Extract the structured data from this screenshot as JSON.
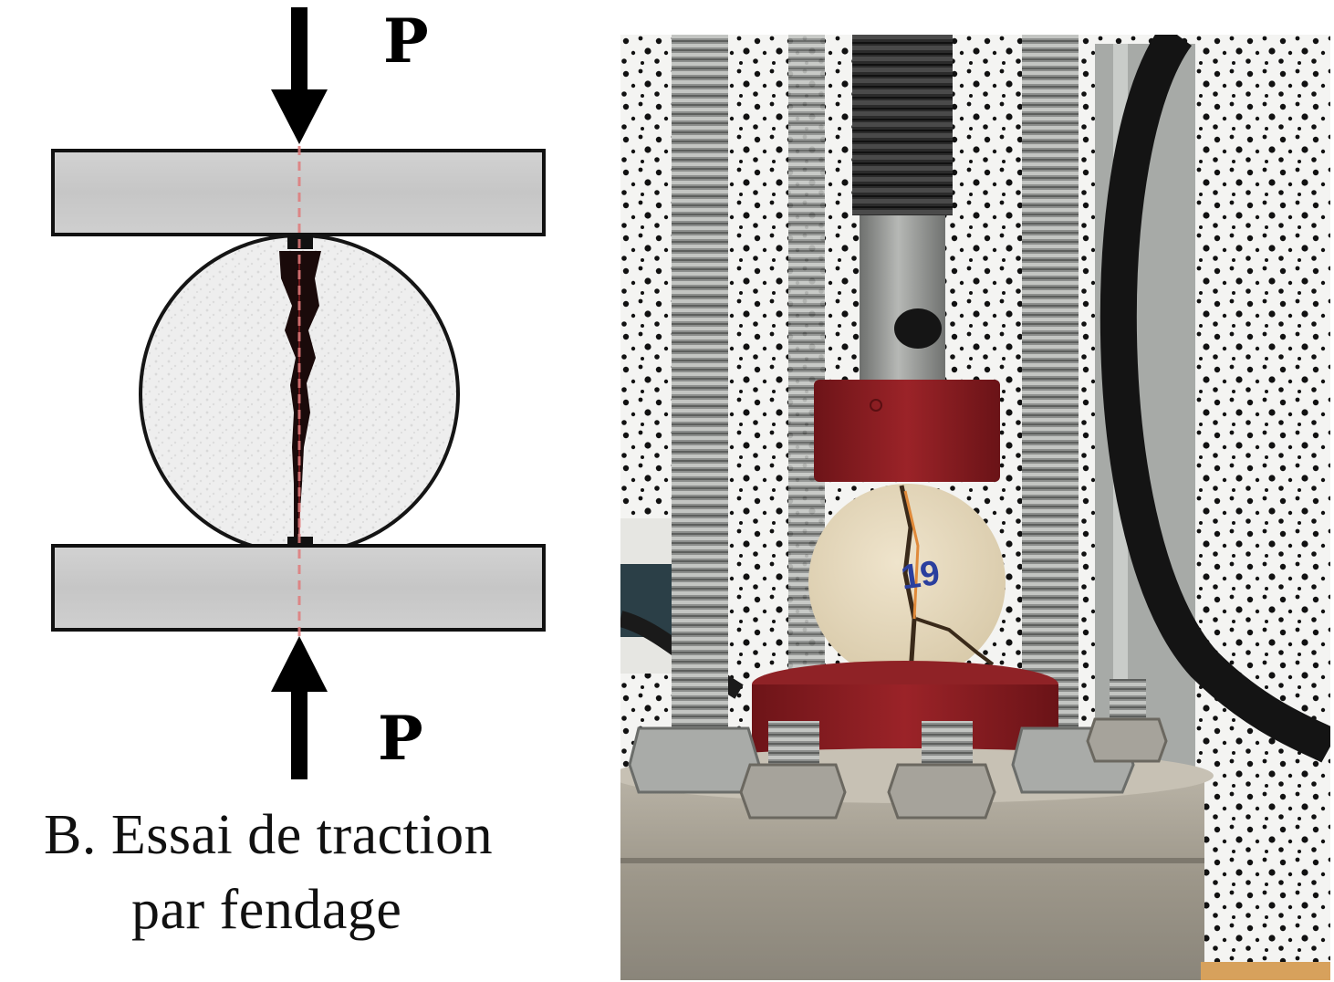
{
  "diagram": {
    "top_force_label": "P",
    "bottom_force_label": "P",
    "caption_line1": "B. Essai de traction",
    "caption_line2": "par fendage"
  },
  "photo": {
    "specimen_marking": "19"
  },
  "colors": {
    "plate_fill": "#c9c9c9",
    "specimen_fill": "#eeeeee",
    "crack": "#1a0a0a",
    "axis_line": "#e07a7a",
    "loading_red": "#8e1f22",
    "sample_beige": "#e6d9bf",
    "marking_blue": "#2a3f9e"
  }
}
